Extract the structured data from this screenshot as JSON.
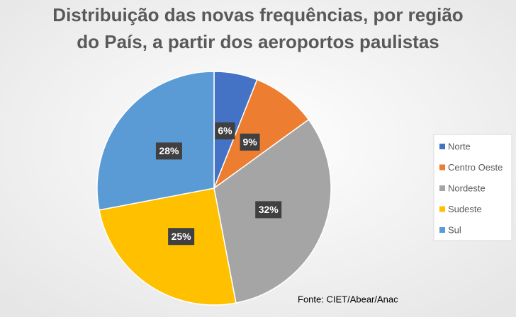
{
  "chart_data": {
    "type": "pie",
    "title": [
      "Distribuição das novas frequências, por região",
      "do País, a partir dos aeroportos paulistas"
    ],
    "categories": [
      "Norte",
      "Centro Oeste",
      "Nordeste",
      "Sudeste",
      "Sul"
    ],
    "values": [
      6,
      9,
      32,
      25,
      28
    ],
    "value_labels": [
      "6%",
      "9%",
      "32%",
      "25%",
      "28%"
    ],
    "colors": [
      "#4472c4",
      "#ed7d31",
      "#a5a5a5",
      "#ffc000",
      "#5b9bd5"
    ],
    "legend": "right",
    "annotation": "Fonte: CIET/Abear/Anac"
  }
}
